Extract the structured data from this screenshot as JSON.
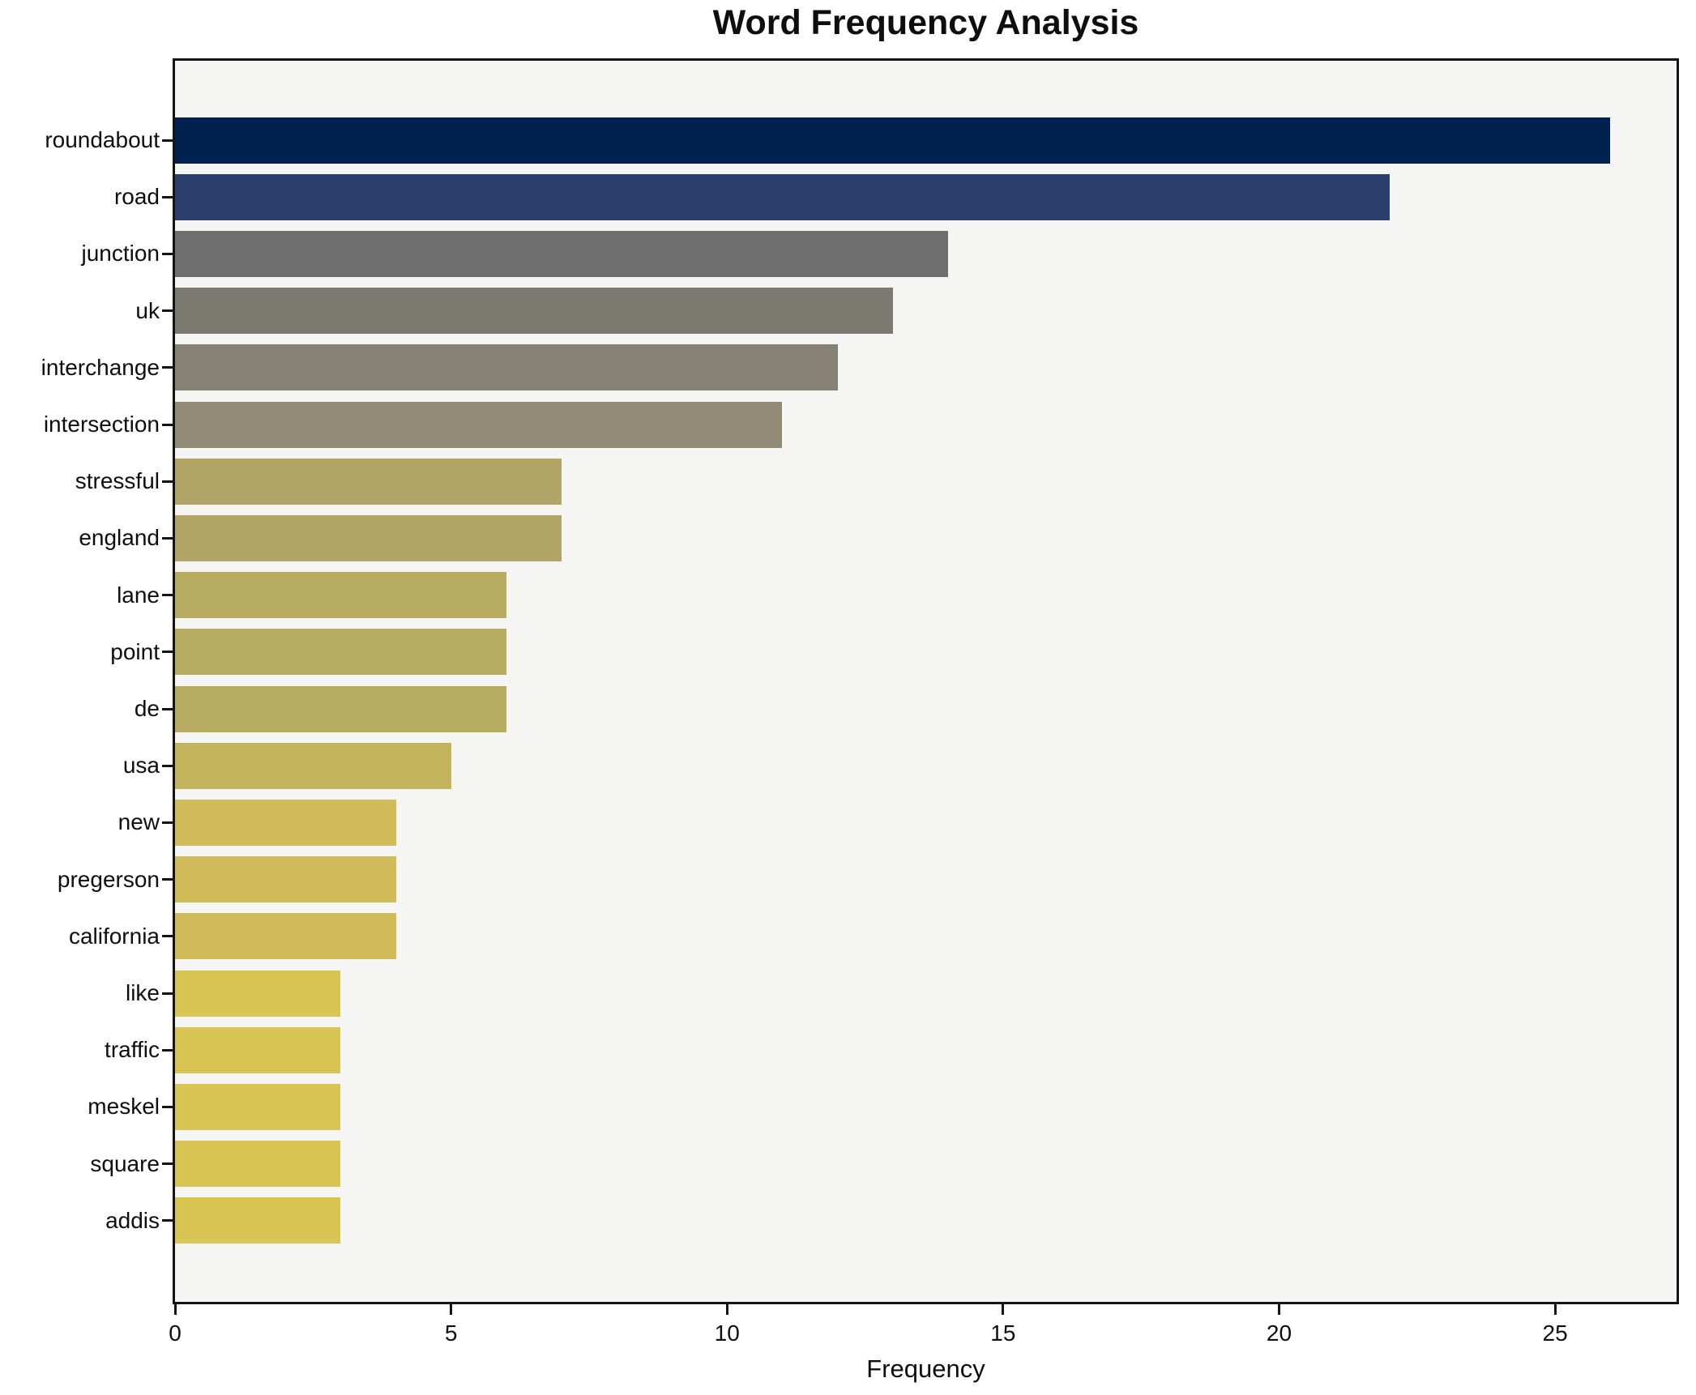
{
  "chart_data": {
    "type": "bar",
    "orientation": "horizontal",
    "title": "Word Frequency Analysis",
    "xlabel": "Frequency",
    "ylabel": "",
    "grid": false,
    "legend": false,
    "xlim": [
      0,
      27.2
    ],
    "xticks": [
      0,
      5,
      10,
      15,
      20,
      25
    ],
    "plot_background": "#f5f5f3",
    "figure_background": "#ffffff",
    "spine_color": "#141414",
    "text_color": "#0e0e0e",
    "categories": [
      "roundabout",
      "road",
      "junction",
      "uk",
      "interchange",
      "intersection",
      "stressful",
      "england",
      "lane",
      "point",
      "de",
      "usa",
      "new",
      "pregerson",
      "california",
      "like",
      "traffic",
      "meskel",
      "square",
      "addis"
    ],
    "values": [
      26,
      22,
      14,
      13,
      12,
      11,
      7,
      7,
      6,
      6,
      6,
      5,
      4,
      4,
      4,
      3,
      3,
      3,
      3,
      3
    ],
    "bar_colors": [
      "#01224e",
      "#2b3f6c",
      "#6f6f6f",
      "#7b7a71",
      "#868172",
      "#908a76",
      "#b2a567",
      "#b2a567",
      "#b8ab62",
      "#b8ab62",
      "#b8ab62",
      "#c3b45d",
      "#d0bd59",
      "#d0bd59",
      "#d0bd59",
      "#d9c553",
      "#d9c553",
      "#d9c553",
      "#d9c553",
      "#d9c553"
    ]
  }
}
